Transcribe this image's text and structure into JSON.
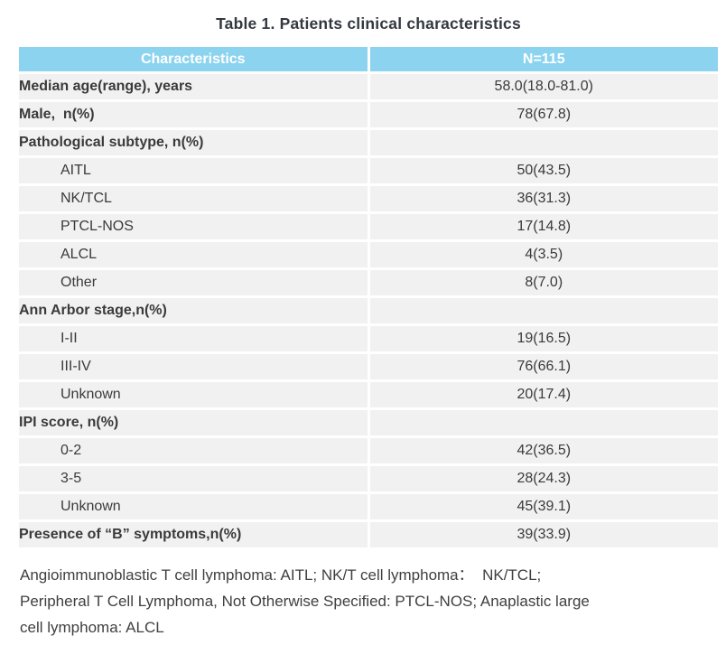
{
  "title": "Table 1. Patients clinical characteristics",
  "colors": {
    "header_bg": "#8BD3EF",
    "header_text": "#FFFFFF",
    "row_bg": "#F1F1F2",
    "row_separator": "#FFFFFF",
    "body_text": "#3A3A3A",
    "title_text": "#333840"
  },
  "table": {
    "header": [
      "Characteristics",
      "N=115"
    ],
    "rows": [
      {
        "label": "Median age(range), years",
        "value": "58.0(18.0-81.0)",
        "level": "top"
      },
      {
        "label": "Male,  n(%)",
        "value": "78(67.8)",
        "level": "top"
      },
      {
        "label": "Pathological subtype, n(%)",
        "value": "",
        "level": "top"
      },
      {
        "label": "AITL",
        "value": "50(43.5)",
        "level": "sub"
      },
      {
        "label": "NK/TCL",
        "value": "36(31.3)",
        "level": "sub"
      },
      {
        "label": "PTCL-NOS",
        "value": "17(14.8)",
        "level": "sub"
      },
      {
        "label": "ALCL",
        "value": "4(3.5)",
        "level": "sub"
      },
      {
        "label": "Other",
        "value": "8(7.0)",
        "level": "sub"
      },
      {
        "label": "Ann Arbor stage,n(%)",
        "value": "",
        "level": "top"
      },
      {
        "label": "I-II",
        "value": "19(16.5)",
        "level": "sub"
      },
      {
        "label": "III-IV",
        "value": "76(66.1)",
        "level": "sub"
      },
      {
        "label": "Unknown",
        "value": "20(17.4)",
        "level": "sub"
      },
      {
        "label": "IPI score, n(%)",
        "value": "",
        "level": "top"
      },
      {
        "label": "0-2",
        "value": "42(36.5)",
        "level": "sub"
      },
      {
        "label": "3-5",
        "value": "28(24.3)",
        "level": "sub"
      },
      {
        "label": "Unknown",
        "value": "45(39.1)",
        "level": "sub"
      },
      {
        "label": "Presence of “B” symptoms,n(%)",
        "value": "39(33.9)",
        "level": "top"
      }
    ]
  },
  "footnote_lines": [
    "Angioimmunoblastic T cell lymphoma: AITL; NK/T cell lymphoma：  NK/TCL;",
    "Peripheral T Cell Lymphoma, Not Otherwise Specified: PTCL-NOS; Anaplastic large",
    "cell lymphoma: ALCL"
  ]
}
